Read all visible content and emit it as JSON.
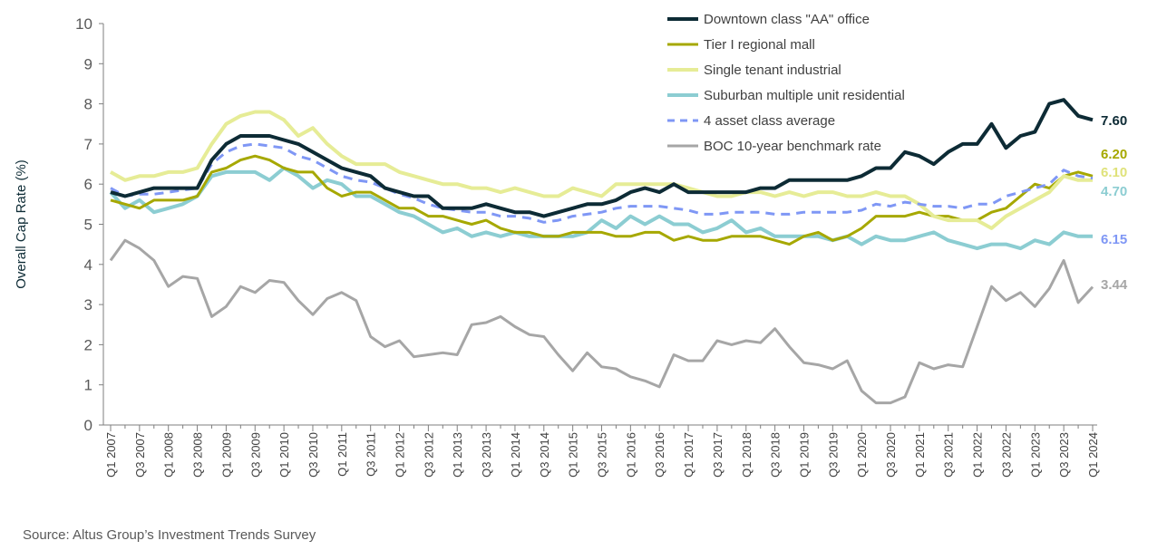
{
  "chart_data": {
    "type": "line",
    "title": "",
    "ylabel": "Overall Cap Rate (%)",
    "xlabel": "",
    "ylim": [
      0,
      10
    ],
    "yticks": [
      "0",
      "1",
      "2",
      "3",
      "4",
      "5",
      "6",
      "7",
      "8",
      "9",
      "10"
    ],
    "frequency": "quarterly",
    "x_tick_labels": [
      "Q1 2007",
      "Q3 2007",
      "Q1 2008",
      "Q3 2008",
      "Q1 2009",
      "Q3 2009",
      "Q1 2010",
      "Q3 2010",
      "Q1 2011",
      "Q3 2011",
      "Q1 2012",
      "Q3 2012",
      "Q1 2013",
      "Q3 2013",
      "Q1 2014",
      "Q3 2014",
      "Q1 2015",
      "Q3 2015",
      "Q1 2016",
      "Q3 2016",
      "Q1 2017",
      "Q3 2017",
      "Q1 2018",
      "Q3 2018",
      "Q1 2019",
      "Q3 2019",
      "Q1 2020",
      "Q3 2020",
      "Q1 2021",
      "Q3 2021",
      "Q1 2022",
      "Q3 2022",
      "Q1 2023",
      "Q3 2023",
      "Q1 2024"
    ],
    "grid": false,
    "legend": "top-right",
    "series": [
      {
        "name": "Downtown class \"AA\" office",
        "color": "#0d2b35",
        "width": 4,
        "dashed": false,
        "end_label": "7.60",
        "values": [
          5.8,
          5.7,
          5.8,
          5.9,
          5.9,
          5.9,
          5.9,
          6.6,
          7.0,
          7.2,
          7.2,
          7.2,
          7.1,
          7.0,
          6.8,
          6.6,
          6.4,
          6.3,
          6.2,
          5.9,
          5.8,
          5.7,
          5.7,
          5.4,
          5.4,
          5.4,
          5.5,
          5.4,
          5.3,
          5.3,
          5.2,
          5.3,
          5.4,
          5.5,
          5.5,
          5.6,
          5.8,
          5.9,
          5.8,
          6.0,
          5.8,
          5.8,
          5.8,
          5.8,
          5.8,
          5.9,
          5.9,
          6.1,
          6.1,
          6.1,
          6.1,
          6.1,
          6.2,
          6.4,
          6.4,
          6.8,
          6.7,
          6.5,
          6.8,
          7.0,
          7.0,
          7.5,
          6.9,
          7.2,
          7.3,
          8.0,
          8.1,
          7.7,
          7.6
        ]
      },
      {
        "name": "Tier I regional mall",
        "color": "#a6a800",
        "width": 3,
        "dashed": false,
        "end_label": "6.20",
        "values": [
          5.6,
          5.5,
          5.4,
          5.6,
          5.6,
          5.6,
          5.7,
          6.3,
          6.4,
          6.6,
          6.7,
          6.6,
          6.4,
          6.3,
          6.3,
          5.9,
          5.7,
          5.8,
          5.8,
          5.6,
          5.4,
          5.4,
          5.2,
          5.2,
          5.1,
          5.0,
          5.1,
          4.9,
          4.8,
          4.8,
          4.7,
          4.7,
          4.8,
          4.8,
          4.8,
          4.7,
          4.7,
          4.8,
          4.8,
          4.6,
          4.7,
          4.6,
          4.6,
          4.7,
          4.7,
          4.7,
          4.6,
          4.5,
          4.7,
          4.8,
          4.6,
          4.7,
          4.9,
          5.2,
          5.2,
          5.2,
          5.3,
          5.2,
          5.2,
          5.1,
          5.1,
          5.3,
          5.4,
          5.7,
          6.0,
          5.9,
          6.2,
          6.3,
          6.2
        ]
      },
      {
        "name": "Single tenant industrial",
        "color": "#e6ec96",
        "width": 4,
        "dashed": false,
        "end_label": "6.10",
        "values": [
          6.3,
          6.1,
          6.2,
          6.2,
          6.3,
          6.3,
          6.4,
          7.0,
          7.5,
          7.7,
          7.8,
          7.8,
          7.6,
          7.2,
          7.4,
          7.0,
          6.7,
          6.5,
          6.5,
          6.5,
          6.3,
          6.2,
          6.1,
          6.0,
          6.0,
          5.9,
          5.9,
          5.8,
          5.9,
          5.8,
          5.7,
          5.7,
          5.9,
          5.8,
          5.7,
          6.0,
          6.0,
          6.0,
          6.0,
          6.0,
          5.9,
          5.8,
          5.7,
          5.7,
          5.8,
          5.8,
          5.7,
          5.8,
          5.7,
          5.8,
          5.8,
          5.7,
          5.7,
          5.8,
          5.7,
          5.7,
          5.5,
          5.2,
          5.1,
          5.1,
          5.1,
          4.9,
          5.2,
          5.4,
          5.6,
          5.8,
          6.2,
          6.1,
          6.1
        ]
      },
      {
        "name": "Suburban multiple unit residential",
        "color": "#8ccdd2",
        "width": 4,
        "dashed": false,
        "end_label": "4.70",
        "values": [
          5.8,
          5.4,
          5.6,
          5.3,
          5.4,
          5.5,
          5.7,
          6.2,
          6.3,
          6.3,
          6.3,
          6.1,
          6.4,
          6.2,
          5.9,
          6.1,
          6.0,
          5.7,
          5.7,
          5.5,
          5.3,
          5.2,
          5.0,
          4.8,
          4.9,
          4.7,
          4.8,
          4.7,
          4.8,
          4.7,
          4.7,
          4.7,
          4.7,
          4.8,
          5.1,
          4.9,
          5.2,
          5.0,
          5.2,
          5.0,
          5.0,
          4.8,
          4.9,
          5.1,
          4.8,
          4.9,
          4.7,
          4.7,
          4.7,
          4.7,
          4.6,
          4.7,
          4.5,
          4.7,
          4.6,
          4.6,
          4.7,
          4.8,
          4.6,
          4.5,
          4.4,
          4.5,
          4.5,
          4.4,
          4.6,
          4.5,
          4.8,
          4.7,
          4.7
        ]
      },
      {
        "name": "4 asset class average",
        "color": "#7f97f5",
        "width": 3,
        "dashed": true,
        "end_label": "6.15",
        "values": [
          5.9,
          5.7,
          5.75,
          5.75,
          5.8,
          5.85,
          5.9,
          6.5,
          6.8,
          6.95,
          7.0,
          6.95,
          6.9,
          6.7,
          6.6,
          6.4,
          6.2,
          6.1,
          6.05,
          5.9,
          5.75,
          5.65,
          5.5,
          5.4,
          5.35,
          5.3,
          5.3,
          5.2,
          5.2,
          5.15,
          5.05,
          5.1,
          5.2,
          5.25,
          5.3,
          5.4,
          5.45,
          5.45,
          5.45,
          5.4,
          5.35,
          5.25,
          5.25,
          5.3,
          5.3,
          5.3,
          5.25,
          5.25,
          5.3,
          5.3,
          5.3,
          5.3,
          5.35,
          5.5,
          5.45,
          5.55,
          5.5,
          5.45,
          5.45,
          5.4,
          5.5,
          5.5,
          5.7,
          5.8,
          5.9,
          6.0,
          6.35,
          6.2,
          6.15
        ]
      },
      {
        "name": "BOC 10-year benchmark rate",
        "color": "#a6a6a6",
        "width": 3,
        "dashed": false,
        "end_label": "3.44",
        "values": [
          4.1,
          4.6,
          4.4,
          4.1,
          3.45,
          3.7,
          3.65,
          2.7,
          2.95,
          3.45,
          3.3,
          3.6,
          3.55,
          3.1,
          2.75,
          3.15,
          3.3,
          3.1,
          2.2,
          1.95,
          2.1,
          1.7,
          1.75,
          1.8,
          1.75,
          2.5,
          2.55,
          2.7,
          2.45,
          2.25,
          2.2,
          1.75,
          1.35,
          1.8,
          1.45,
          1.4,
          1.2,
          1.1,
          0.95,
          1.75,
          1.6,
          1.6,
          2.1,
          2.0,
          2.1,
          2.05,
          2.4,
          1.95,
          1.55,
          1.5,
          1.4,
          1.6,
          0.85,
          0.55,
          0.55,
          0.7,
          1.55,
          1.4,
          1.5,
          1.45,
          2.45,
          3.45,
          3.1,
          3.3,
          2.95,
          3.4,
          4.1,
          3.05,
          3.44
        ]
      }
    ],
    "end_label_colors": [
      "#0d2b35",
      "#a6a800",
      "#dfe27a",
      "#8ccdd2",
      "#7f97f5",
      "#a6a6a6"
    ]
  },
  "source": "Source:  Altus Group’s Investment Trends Survey"
}
